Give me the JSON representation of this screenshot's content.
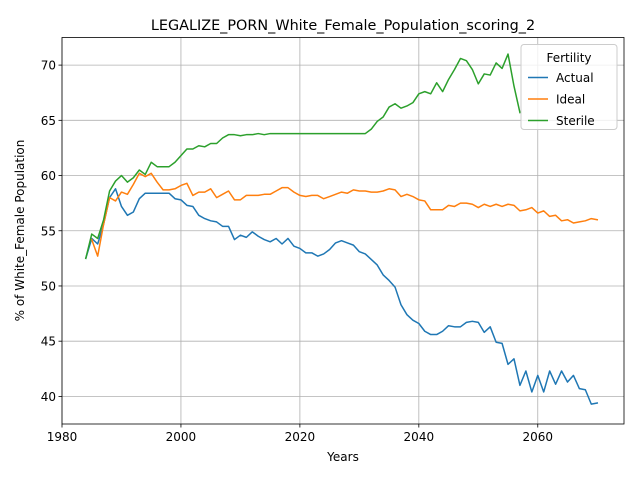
{
  "chart_data": {
    "type": "line",
    "title": "LEGALIZE_PORN_White_Female_Population_scoring_2",
    "xlabel": "Years",
    "ylabel": "% of White_Female Population",
    "xlim": [
      1980,
      2074.5
    ],
    "ylim": [
      37.5,
      72.5
    ],
    "xticks": [
      1980,
      2000,
      2020,
      2040,
      2060
    ],
    "yticks": [
      40,
      45,
      50,
      55,
      60,
      65,
      70
    ],
    "grid": true,
    "legend": {
      "title": "Fertility",
      "placement": "top-right"
    },
    "series": [
      {
        "name": "Actual",
        "color": "#1f77b4",
        "x": [
          1984,
          1985,
          1986,
          1987,
          1988,
          1989,
          1990,
          1991,
          1992,
          1993,
          1994,
          1995,
          1996,
          1997,
          1998,
          1999,
          2000,
          2001,
          2002,
          2003,
          2004,
          2005,
          2006,
          2007,
          2008,
          2009,
          2010,
          2011,
          2012,
          2013,
          2014,
          2015,
          2016,
          2017,
          2018,
          2019,
          2020,
          2021,
          2022,
          2023,
          2024,
          2025,
          2026,
          2027,
          2028,
          2029,
          2030,
          2031,
          2032,
          2033,
          2034,
          2035,
          2036,
          2037,
          2038,
          2039,
          2040,
          2041,
          2042,
          2043,
          2044,
          2045,
          2046,
          2047,
          2048,
          2049,
          2050,
          2051,
          2052,
          2053,
          2054,
          2055,
          2056,
          2057,
          2058,
          2059,
          2060,
          2061,
          2062,
          2063,
          2064,
          2065,
          2066,
          2067,
          2068,
          2069,
          2070
        ],
        "y": [
          52.5,
          54.3,
          53.8,
          55.6,
          58.0,
          58.8,
          57.2,
          56.4,
          56.7,
          57.9,
          58.4,
          58.4,
          58.4,
          58.4,
          58.4,
          57.9,
          57.8,
          57.3,
          57.2,
          56.4,
          56.1,
          55.9,
          55.8,
          55.4,
          55.4,
          54.2,
          54.6,
          54.4,
          54.9,
          54.5,
          54.2,
          54.0,
          54.3,
          53.8,
          54.3,
          53.6,
          53.4,
          53.0,
          53.0,
          52.7,
          52.9,
          53.3,
          53.9,
          54.1,
          53.9,
          53.7,
          53.1,
          52.9,
          52.4,
          51.9,
          51.0,
          50.5,
          49.9,
          48.3,
          47.4,
          46.9,
          46.6,
          45.9,
          45.6,
          45.6,
          45.9,
          46.4,
          46.3,
          46.3,
          46.7,
          46.8,
          46.7,
          45.8,
          46.3,
          44.9,
          44.8,
          42.9,
          43.4,
          41.0,
          42.3,
          40.4,
          41.9,
          40.4,
          42.3,
          41.1,
          42.3,
          41.3,
          41.9,
          40.7,
          40.6,
          39.3,
          39.4
        ]
      },
      {
        "name": "Ideal",
        "color": "#ff7f0e",
        "x": [
          1985,
          1986,
          1987,
          1988,
          1989,
          1990,
          1991,
          1992,
          1993,
          1994,
          1995,
          1996,
          1997,
          1998,
          1999,
          2000,
          2001,
          2002,
          2003,
          2004,
          2005,
          2006,
          2007,
          2008,
          2009,
          2010,
          2011,
          2012,
          2013,
          2014,
          2015,
          2016,
          2017,
          2018,
          2019,
          2020,
          2021,
          2022,
          2023,
          2024,
          2025,
          2026,
          2027,
          2028,
          2029,
          2030,
          2031,
          2032,
          2033,
          2034,
          2035,
          2036,
          2037,
          2038,
          2039,
          2040,
          2041,
          2042,
          2043,
          2044,
          2045,
          2046,
          2047,
          2048,
          2049,
          2050,
          2051,
          2052,
          2053,
          2054,
          2055,
          2056,
          2057,
          2058,
          2059,
          2060,
          2061,
          2062,
          2063,
          2064,
          2065,
          2066,
          2067,
          2068,
          2069,
          2070
        ],
        "y": [
          54.2,
          52.7,
          55.6,
          58.0,
          57.7,
          58.5,
          58.3,
          59.2,
          60.2,
          59.9,
          60.2,
          59.4,
          58.7,
          58.7,
          58.8,
          59.1,
          59.3,
          58.2,
          58.5,
          58.5,
          58.8,
          58.0,
          58.3,
          58.6,
          57.8,
          57.8,
          58.2,
          58.2,
          58.2,
          58.3,
          58.3,
          58.6,
          58.9,
          58.9,
          58.5,
          58.2,
          58.1,
          58.2,
          58.2,
          57.9,
          58.1,
          58.3,
          58.5,
          58.4,
          58.7,
          58.6,
          58.6,
          58.5,
          58.5,
          58.6,
          58.8,
          58.7,
          58.1,
          58.3,
          58.1,
          57.8,
          57.7,
          56.9,
          56.9,
          56.9,
          57.3,
          57.2,
          57.5,
          57.5,
          57.4,
          57.1,
          57.4,
          57.2,
          57.4,
          57.2,
          57.4,
          57.3,
          56.8,
          56.9,
          57.1,
          56.6,
          56.8,
          56.3,
          56.4,
          55.9,
          56.0,
          55.7,
          55.8,
          55.9,
          56.1,
          56.0
        ]
      },
      {
        "name": "Sterile",
        "color": "#2ca02c",
        "x": [
          1984,
          1985,
          1986,
          1987,
          1988,
          1989,
          1990,
          1991,
          1992,
          1993,
          1994,
          1995,
          1996,
          1997,
          1998,
          1999,
          2000,
          2001,
          2002,
          2003,
          2004,
          2005,
          2006,
          2007,
          2008,
          2009,
          2010,
          2011,
          2012,
          2013,
          2014,
          2015,
          2016,
          2017,
          2018,
          2019,
          2020,
          2021,
          2022,
          2023,
          2024,
          2025,
          2026,
          2027,
          2028,
          2029,
          2030,
          2031,
          2032,
          2033,
          2034,
          2035,
          2036,
          2037,
          2038,
          2039,
          2040,
          2041,
          2042,
          2043,
          2044,
          2045,
          2046,
          2047,
          2048,
          2049,
          2050,
          2051,
          2052,
          2053,
          2054,
          2055,
          2056,
          2057
        ],
        "y": [
          52.5,
          54.7,
          54.3,
          56.0,
          58.6,
          59.5,
          60.0,
          59.4,
          59.8,
          60.5,
          60.1,
          61.2,
          60.8,
          60.8,
          60.8,
          61.2,
          61.8,
          62.4,
          62.4,
          62.7,
          62.6,
          62.9,
          62.9,
          63.4,
          63.7,
          63.7,
          63.6,
          63.7,
          63.7,
          63.8,
          63.7,
          63.8,
          63.8,
          63.8,
          63.8,
          63.8,
          63.8,
          63.8,
          63.8,
          63.8,
          63.8,
          63.8,
          63.8,
          63.8,
          63.8,
          63.8,
          63.8,
          63.8,
          64.2,
          64.9,
          65.3,
          66.2,
          66.5,
          66.1,
          66.3,
          66.6,
          67.4,
          67.6,
          67.4,
          68.4,
          67.6,
          68.7,
          69.6,
          70.6,
          70.4,
          69.6,
          68.3,
          69.2,
          69.1,
          70.2,
          69.7,
          71.0,
          68.1,
          65.7
        ]
      }
    ]
  }
}
